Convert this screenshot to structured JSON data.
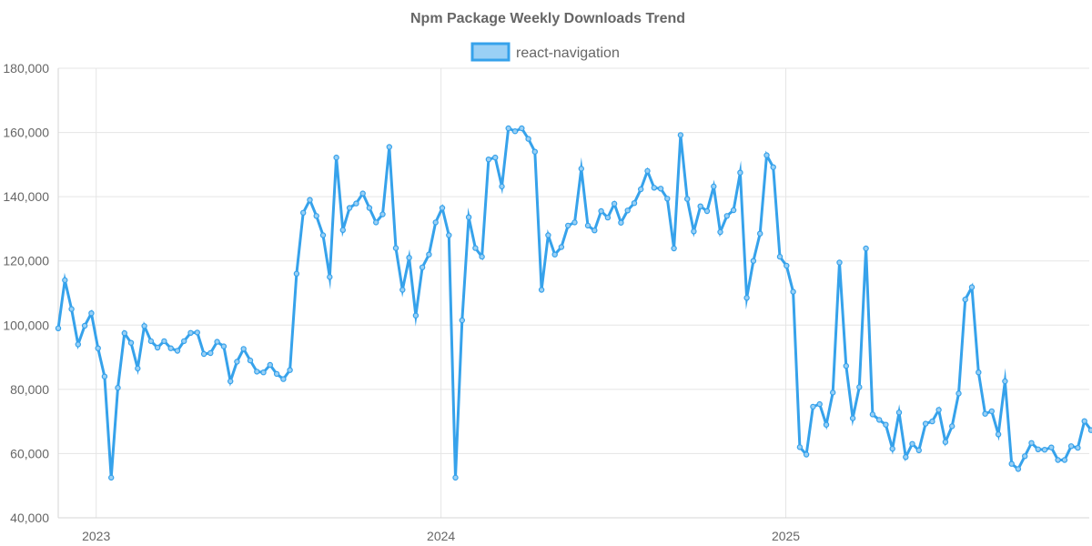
{
  "chart_data": {
    "type": "line",
    "title": "Npm Package Weekly Downloads Trend",
    "legend": "top",
    "grid": true,
    "colors": {
      "line": "#36a2eb",
      "fill": "#9ad0f5",
      "grid": "#e5e5e5",
      "text": "#666666"
    },
    "ylim": [
      40000,
      180000
    ],
    "yticks": [
      40000,
      60000,
      80000,
      100000,
      120000,
      140000,
      160000,
      180000
    ],
    "ytick_labels": [
      "40,000",
      "60,000",
      "80,000",
      "100,000",
      "120,000",
      "140,000",
      "160,000",
      "180,000"
    ],
    "xlim": [
      2022.89,
      2025.88
    ],
    "xticks": [
      2023,
      2024,
      2025
    ],
    "xtick_labels": [
      "2023",
      "2024",
      "2025"
    ],
    "xlabel": "",
    "ylabel": "",
    "series": [
      {
        "name": "react-navigation",
        "start_year": 2022.89,
        "step_years": 0.0192,
        "values": [
          99000,
          114000,
          105000,
          94000,
          99800,
          103700,
          92800,
          84000,
          52500,
          80500,
          97500,
          94500,
          86500,
          99700,
          95000,
          93000,
          95000,
          92800,
          92000,
          95000,
          97600,
          97700,
          91000,
          91300,
          94800,
          93400,
          82500,
          88600,
          92600,
          89000,
          85500,
          85300,
          87600,
          84800,
          83200,
          86000,
          116000,
          135000,
          139000,
          134000,
          128000,
          115000,
          152200,
          129600,
          136500,
          137900,
          141000,
          136500,
          132000,
          134500,
          155500,
          124000,
          111000,
          121000,
          103000,
          118000,
          122000,
          132000,
          136500,
          128000,
          52500,
          101500,
          133600,
          124000,
          121300,
          151600,
          152200,
          143200,
          161300,
          160400,
          161300,
          158000,
          154000,
          111000,
          128000,
          122000,
          124300,
          131000,
          132000,
          148700,
          131000,
          129500,
          135500,
          133500,
          137800,
          131900,
          135700,
          138000,
          142300,
          148000,
          142800,
          142500,
          139400,
          123900,
          159200,
          139300,
          129200,
          137000,
          135500,
          143200,
          129000,
          134000,
          135800,
          147500,
          108500,
          120000,
          128500,
          152900,
          149200,
          121300,
          118500,
          110400,
          62000,
          59700,
          74600,
          75400,
          69000,
          79000,
          119500,
          87300,
          71000,
          80700,
          123900,
          72200,
          70500,
          69000,
          61500,
          72800,
          58900,
          63000,
          61000,
          69300,
          70000,
          73600,
          63600,
          68500,
          78700,
          108000,
          111800,
          85300,
          72400,
          73200,
          66000,
          82500,
          56800,
          55200,
          59200,
          63300,
          61300,
          61200,
          61900,
          58000,
          58000,
          62300,
          61800,
          70100,
          67300
        ]
      }
    ]
  }
}
